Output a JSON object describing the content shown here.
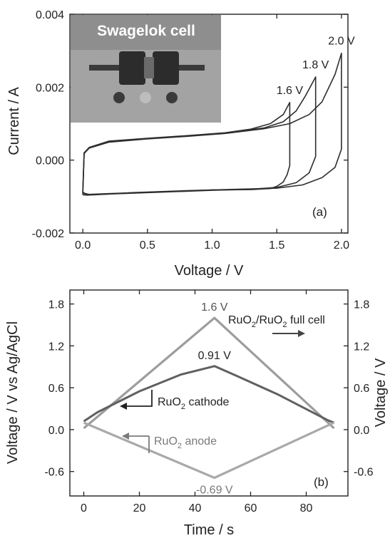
{
  "colors": {
    "cv_curve": "#2e2e2e",
    "full_cell": "#9d9d9d",
    "cathode": "#606060",
    "anode": "#a9a9a9",
    "axis": "#222222",
    "inset_bg": "#8e8e8e"
  },
  "chart_data": [
    {
      "panel": "(a)",
      "type": "line",
      "xlabel": "Voltage / V",
      "ylabel": "Current / A",
      "xlim": [
        -0.1,
        2.05
      ],
      "ylim": [
        -0.002,
        0.004
      ],
      "xticks": [
        "0.0",
        "0.5",
        "1.0",
        "1.5",
        "2.0"
      ],
      "xtick_values": [
        0,
        0.5,
        1.0,
        1.5,
        2.0
      ],
      "yticks": [
        "-0.002",
        "0.000",
        "0.002",
        "0.004"
      ],
      "ytick_values": [
        -0.002,
        0,
        0.002,
        0.004
      ],
      "grid": false,
      "inset": {
        "title": "Swagelok cell"
      },
      "annotations": [
        {
          "text": "1.6 V",
          "x": 1.6,
          "y": 0.00158
        },
        {
          "text": "1.8 V",
          "x": 1.8,
          "y": 0.00228
        },
        {
          "text": "2.0 V",
          "x": 2.0,
          "y": 0.00293
        }
      ],
      "series": [
        {
          "label": "1.6 V",
          "x": [
            0,
            0.01,
            0.05,
            0.2,
            0.5,
            0.8,
            1.1,
            1.3,
            1.45,
            1.55,
            1.6,
            1.6,
            1.58,
            1.55,
            1.5,
            1.45,
            1.3,
            1.0,
            0.6,
            0.2,
            0.05,
            0.02,
            0
          ],
          "y": [
            -0.00088,
            0.0002,
            0.00035,
            0.00052,
            0.0006,
            0.00067,
            0.00075,
            0.00085,
            0.001,
            0.00125,
            0.00158,
            -0.00015,
            -0.0004,
            -0.0006,
            -0.00072,
            -0.00078,
            -0.00081,
            -0.00082,
            -0.00087,
            -0.00092,
            -0.00094,
            -0.00092,
            -0.00088
          ]
        },
        {
          "label": "1.8 V",
          "x": [
            0,
            0.01,
            0.05,
            0.2,
            0.5,
            0.8,
            1.1,
            1.4,
            1.55,
            1.65,
            1.72,
            1.8,
            1.8,
            1.75,
            1.65,
            1.5,
            1.3,
            1.0,
            0.6,
            0.2,
            0.05,
            0.02,
            0
          ],
          "y": [
            -0.0009,
            0.0002,
            0.00034,
            0.0005,
            0.00059,
            0.00066,
            0.00074,
            0.00088,
            0.00105,
            0.00135,
            0.00175,
            0.00228,
            0.0001,
            -0.00035,
            -0.00062,
            -0.00075,
            -0.0008,
            -0.00083,
            -0.00088,
            -0.00093,
            -0.00095,
            -0.00093,
            -0.0009
          ]
        },
        {
          "label": "2.0 V",
          "x": [
            0,
            0.01,
            0.05,
            0.2,
            0.5,
            0.8,
            1.1,
            1.4,
            1.6,
            1.75,
            1.85,
            1.95,
            2.0,
            2.0,
            1.95,
            1.85,
            1.7,
            1.5,
            1.2,
            0.8,
            0.4,
            0.1,
            0.03,
            0
          ],
          "y": [
            -0.00095,
            0.00018,
            0.00033,
            0.00049,
            0.00058,
            0.00065,
            0.00073,
            0.00086,
            0.001,
            0.00125,
            0.0016,
            0.00235,
            0.00293,
            0.0003,
            -0.0002,
            -0.00048,
            -0.00068,
            -0.00077,
            -0.0008,
            -0.00084,
            -0.00089,
            -0.00095,
            -0.00096,
            -0.00095
          ]
        }
      ]
    },
    {
      "panel": "(b)",
      "type": "line",
      "xlabel": "Time / s",
      "ylabel": "Voltage / V vs Ag/AgCl",
      "ylabel_right": "Voltage / V",
      "xlim": [
        -5,
        95
      ],
      "ylim": [
        -0.95,
        2.0
      ],
      "xticks": [
        "0",
        "20",
        "40",
        "60",
        "80"
      ],
      "xtick_values": [
        0,
        20,
        40,
        60,
        80
      ],
      "yticks": [
        "-0.6",
        "0.0",
        "0.6",
        "1.2",
        "1.8"
      ],
      "ytick_values": [
        -0.6,
        0,
        0.6,
        1.2,
        1.8
      ],
      "grid": false,
      "annotations": [
        {
          "text": "1.6 V",
          "x": 47,
          "y": 1.6
        },
        {
          "text": "0.91 V",
          "x": 47,
          "y": 0.91
        },
        {
          "text": "-0.69 V",
          "x": 47,
          "y": -0.69
        }
      ],
      "legend_labels": [
        {
          "base": "RuO",
          "sub": "2",
          "rest": "/RuO",
          "sub2": "2",
          "tail": " full cell",
          "arrow": "right"
        },
        {
          "base": "RuO",
          "sub": "2",
          "rest": " cathode",
          "arrow": "left"
        },
        {
          "base": "RuO",
          "sub": "2",
          "rest": " anode",
          "arrow": "left"
        }
      ],
      "series": [
        {
          "label": "full cell",
          "x": [
            0,
            47,
            90
          ],
          "y": [
            0.02,
            1.6,
            0.02
          ]
        },
        {
          "label": "cathode",
          "x": [
            0,
            5,
            20,
            35,
            47,
            55,
            70,
            88,
            90
          ],
          "y": [
            0.12,
            0.25,
            0.55,
            0.79,
            0.91,
            0.77,
            0.5,
            0.13,
            0.1
          ]
        },
        {
          "label": "anode",
          "x": [
            0,
            47,
            90
          ],
          "y": [
            0.1,
            -0.69,
            0.1
          ]
        }
      ]
    }
  ]
}
